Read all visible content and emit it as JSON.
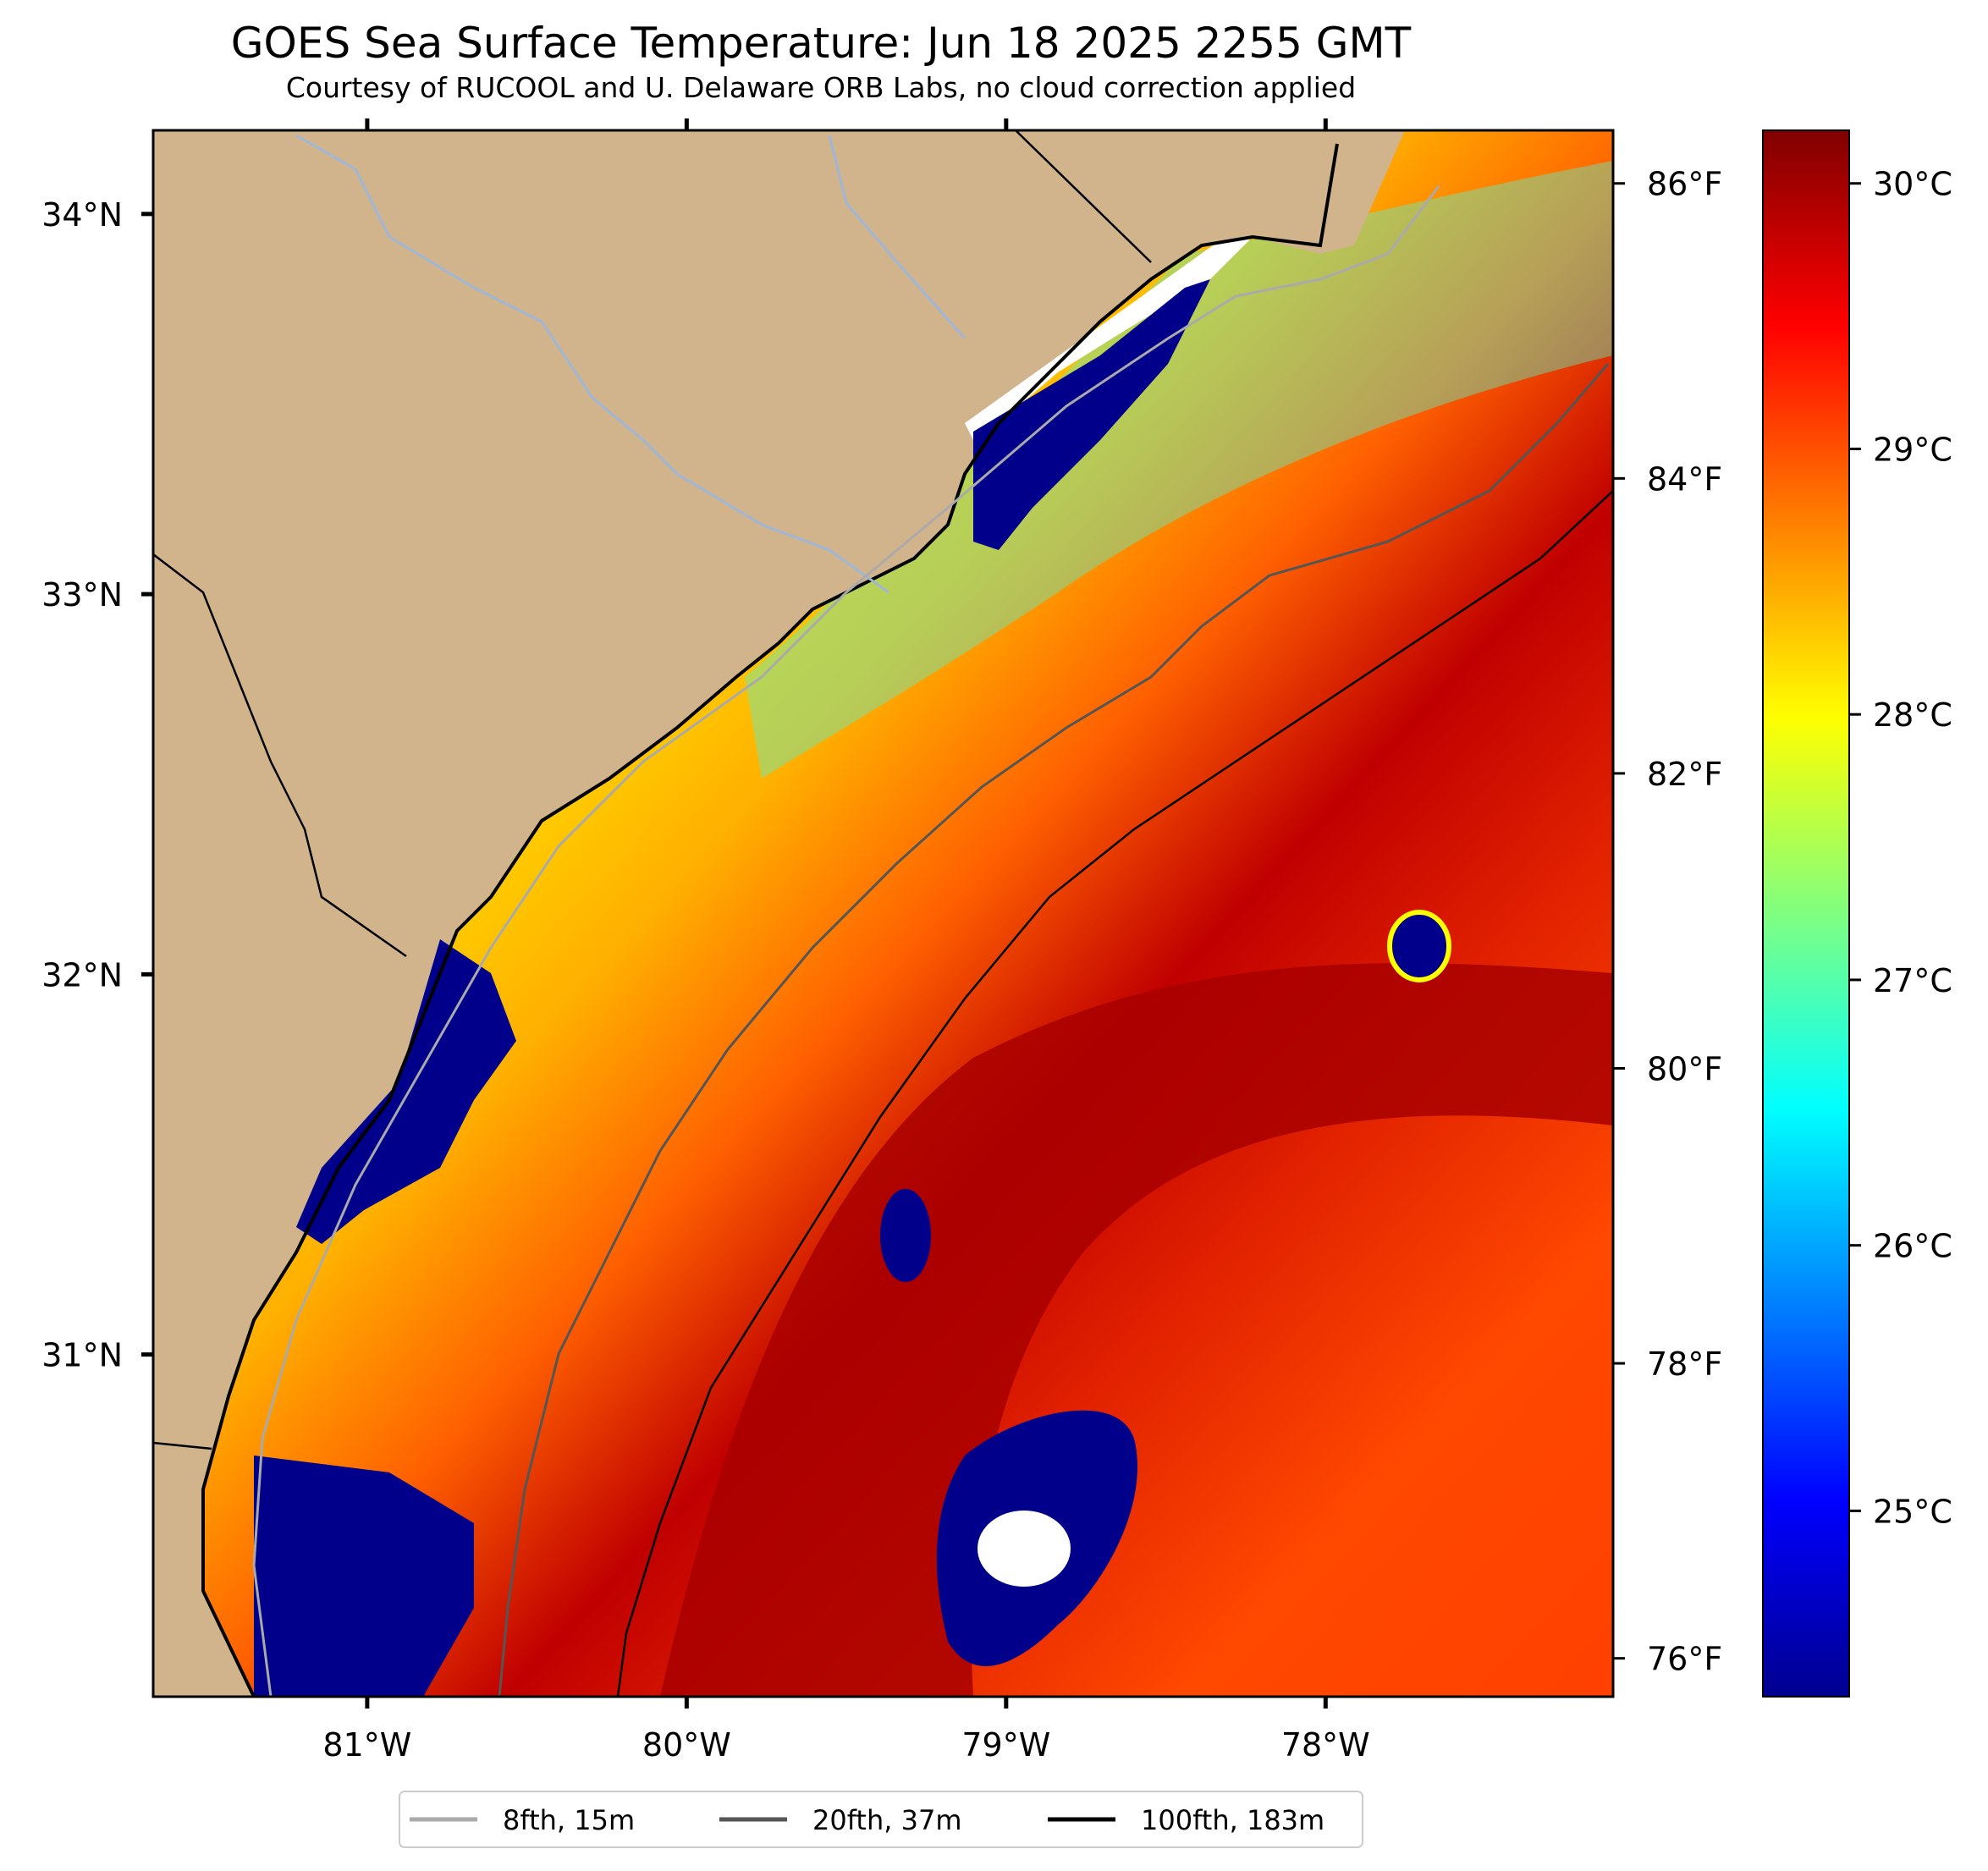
{
  "title": "GOES Sea Surface Temperature: Jun 18 2025 2255 GMT",
  "subtitle": "Courtesy of RUCOOL and U. Delaware ORB Labs, no cloud correction applied",
  "colors": {
    "land": "#d2b48c",
    "cloud_mask_low": "#00008b",
    "no_data": "#ffffff",
    "coastline": "#000000",
    "rivers": "#9fb6d6"
  },
  "map": {
    "lon_range": [
      -81.67,
      -77.1
    ],
    "lat_range": [
      30.1,
      34.22
    ],
    "lon_ticks": [
      {
        "value": -81,
        "label": "81°W"
      },
      {
        "value": -80,
        "label": "80°W"
      },
      {
        "value": -79,
        "label": "79°W"
      },
      {
        "value": -78,
        "label": "78°W"
      }
    ],
    "lat_ticks": [
      {
        "value": 34,
        "label": "34°N"
      },
      {
        "value": 33,
        "label": "33°N"
      },
      {
        "value": 32,
        "label": "32°N"
      },
      {
        "value": 31,
        "label": "31°N"
      }
    ],
    "fahrenheit_ticks": [
      {
        "value": 86,
        "label": "86°F"
      },
      {
        "value": 84,
        "label": "84°F"
      },
      {
        "value": 82,
        "label": "82°F"
      },
      {
        "value": 80,
        "label": "80°F"
      },
      {
        "value": 78,
        "label": "78°F"
      },
      {
        "value": 76,
        "label": "76°F"
      }
    ]
  },
  "colorbar": {
    "colormap": "jet",
    "range_c": [
      24.3,
      30.2
    ],
    "ticks": [
      {
        "value": 30,
        "label": "30°C"
      },
      {
        "value": 29,
        "label": "29°C"
      },
      {
        "value": 28,
        "label": "28°C"
      },
      {
        "value": 27,
        "label": "27°C"
      },
      {
        "value": 26,
        "label": "26°C"
      },
      {
        "value": 25,
        "label": "25°C"
      }
    ]
  },
  "legend": [
    {
      "label": "8fth, 15m",
      "color": "#aaaaaa"
    },
    {
      "label": "20fth, 37m",
      "color": "#555555"
    },
    {
      "label": "100fth, 183m",
      "color": "#000000"
    }
  ]
}
